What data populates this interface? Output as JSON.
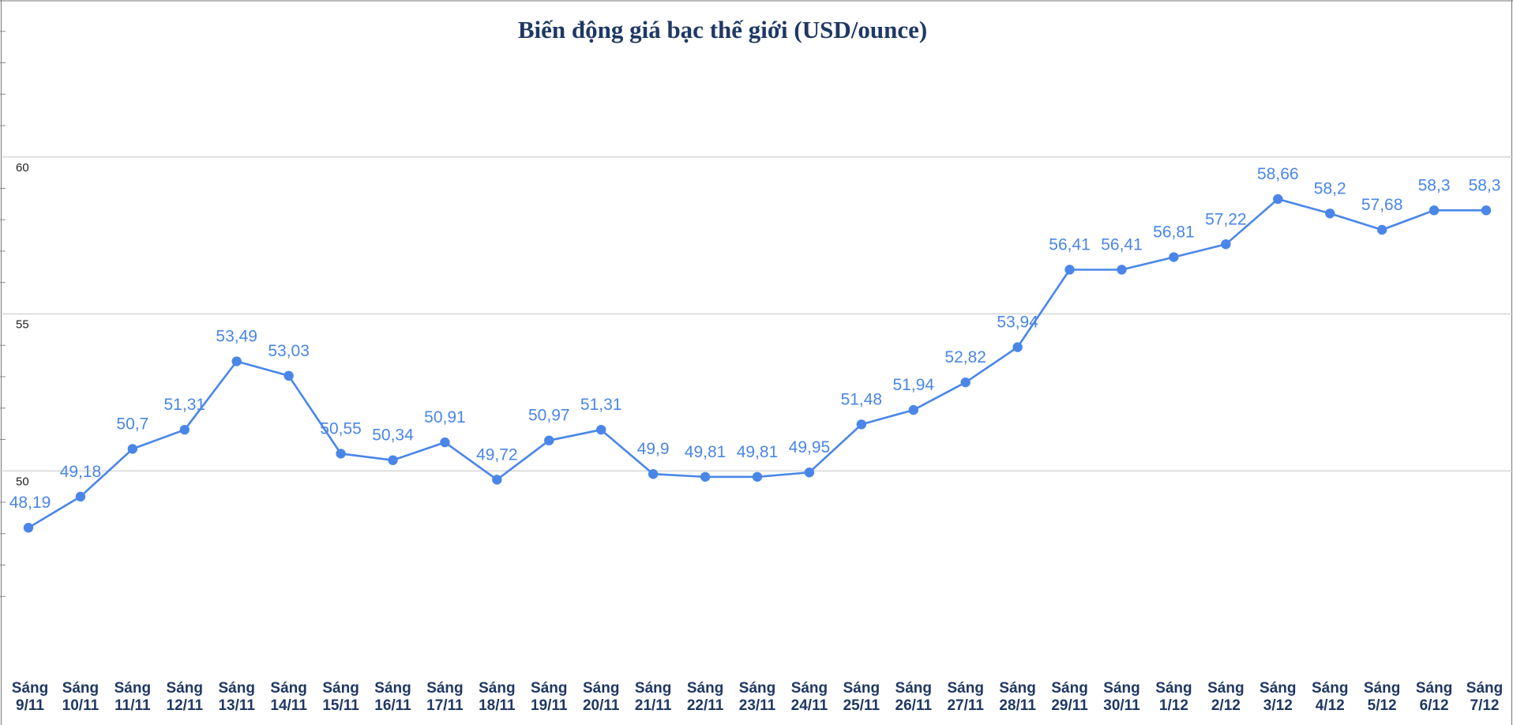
{
  "chart_data": {
    "type": "line",
    "title": "Biến động giá bạc thế giới (USD/ounce)",
    "xlabel": "",
    "ylabel": "",
    "ylim": [
      45,
      65
    ],
    "yticks": [
      50,
      55,
      60
    ],
    "grid": true,
    "line_color": "#4a86e8",
    "categories": [
      [
        "Sáng",
        "9/11"
      ],
      [
        "Sáng",
        "10/11"
      ],
      [
        "Sáng",
        "11/11"
      ],
      [
        "Sáng",
        "12/11"
      ],
      [
        "Sáng",
        "13/11"
      ],
      [
        "Sáng",
        "14/11"
      ],
      [
        "Sáng",
        "15/11"
      ],
      [
        "Sáng",
        "16/11"
      ],
      [
        "Sáng",
        "17/11"
      ],
      [
        "Sáng",
        "18/11"
      ],
      [
        "Sáng",
        "19/11"
      ],
      [
        "Sáng",
        "20/11"
      ],
      [
        "Sáng",
        "21/11"
      ],
      [
        "Sáng",
        "22/11"
      ],
      [
        "Sáng",
        "23/11"
      ],
      [
        "Sáng",
        "24/11"
      ],
      [
        "Sáng",
        "25/11"
      ],
      [
        "Sáng",
        "26/11"
      ],
      [
        "Sáng",
        "27/11"
      ],
      [
        "Sáng",
        "28/11"
      ],
      [
        "Sáng",
        "29/11"
      ],
      [
        "Sáng",
        "30/11"
      ],
      [
        "Sáng",
        "1/12"
      ],
      [
        "Sáng",
        "2/12"
      ],
      [
        "Sáng",
        "3/12"
      ],
      [
        "Sáng",
        "4/12"
      ],
      [
        "Sáng",
        "5/12"
      ],
      [
        "Sáng",
        "6/12"
      ],
      [
        "Sáng",
        "7/12"
      ]
    ],
    "values": [
      48.19,
      49.18,
      50.7,
      51.31,
      53.49,
      53.03,
      50.55,
      50.34,
      50.91,
      49.72,
      50.97,
      51.31,
      49.9,
      49.81,
      49.81,
      49.95,
      51.48,
      51.94,
      52.82,
      53.94,
      56.41,
      56.41,
      56.81,
      57.22,
      58.66,
      58.2,
      57.68,
      58.3,
      58.3
    ],
    "labels": [
      "48,19",
      "49,18",
      "50,7",
      "51,31",
      "53,49",
      "53,03",
      "50,55",
      "50,34",
      "50,91",
      "49,72",
      "50,97",
      "51,31",
      "49,9",
      "49,81",
      "49,81",
      "49,95",
      "51,48",
      "51,94",
      "52,82",
      "53,94",
      "56,41",
      "56,41",
      "56,81",
      "57,22",
      "58,66",
      "58,2",
      "57,68",
      "58,3",
      "58,3"
    ]
  }
}
